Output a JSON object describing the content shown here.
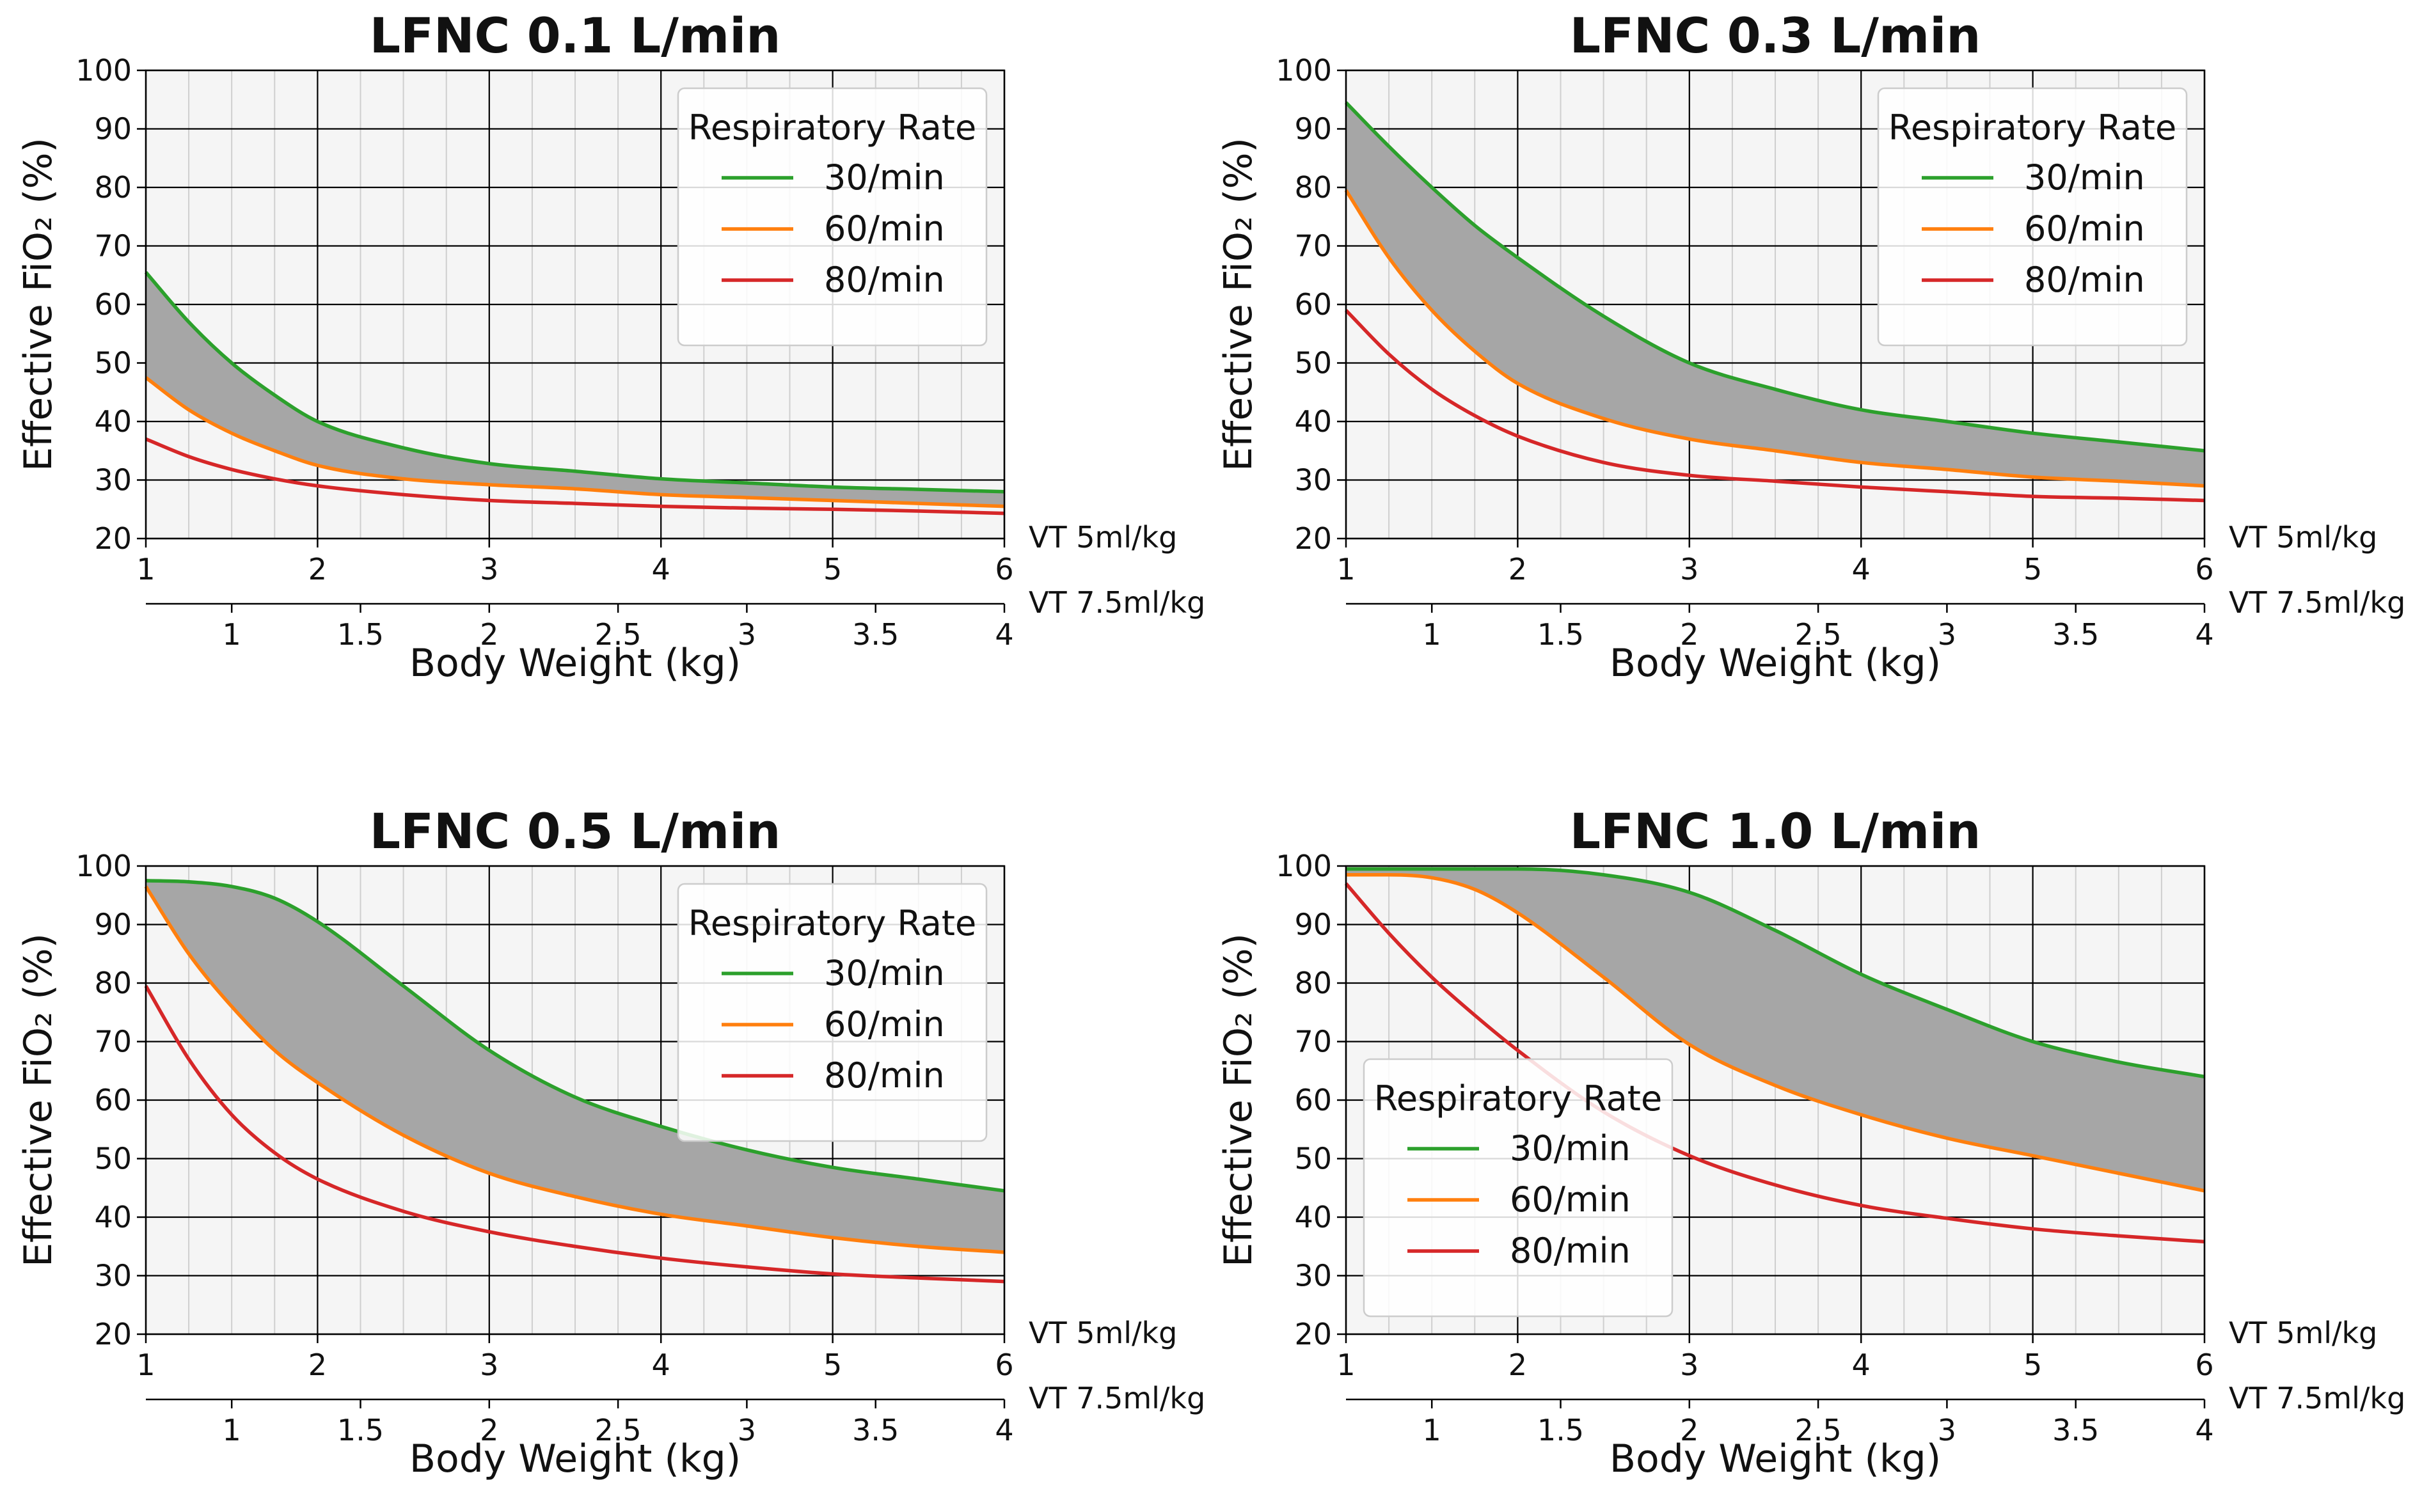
{
  "chart_data": [
    {
      "type": "line",
      "title": "LFNC 0.1 L/min",
      "xlabel": "Body Weight (kg)",
      "ylabel": "Effective FiO₂ (%)",
      "secondary_x_label": "VT 7.5ml/kg",
      "primary_x_label": "VT 5ml/kg",
      "xlim": [
        1,
        6
      ],
      "ylim": [
        20,
        100
      ],
      "x_ticks": [
        "1",
        "2",
        "3",
        "4",
        "5",
        "6"
      ],
      "secondary_x_ticks": [
        "1",
        "1.5",
        "2",
        "2.5",
        "3",
        "3.5",
        "4"
      ],
      "y_ticks": [
        "20",
        "30",
        "40",
        "50",
        "60",
        "70",
        "80",
        "90",
        "100"
      ],
      "grid": true,
      "shaded_between": [
        "30/min",
        "60/min"
      ],
      "legend": {
        "title": "Respiratory Rate",
        "position": "top-right"
      },
      "x": [
        1,
        1.25,
        1.5,
        1.75,
        2,
        2.5,
        3,
        3.5,
        4,
        4.5,
        5,
        5.5,
        6
      ],
      "series": [
        {
          "name": "30/min",
          "color": "#2ca02c",
          "values": [
            65.5,
            57,
            50,
            44.5,
            40,
            35.5,
            32.8,
            31.5,
            30.2,
            29.5,
            28.8,
            28.4,
            28
          ]
        },
        {
          "name": "60/min",
          "color": "#ff7f0e",
          "values": [
            47.5,
            42,
            38,
            35,
            32.5,
            30.2,
            29.2,
            28.5,
            27.5,
            27,
            26.5,
            26,
            25.5
          ]
        },
        {
          "name": "80/min",
          "color": "#d62728",
          "values": [
            37,
            34,
            31.8,
            30.2,
            29,
            27.5,
            26.5,
            26,
            25.5,
            25.2,
            25,
            24.7,
            24.3
          ]
        }
      ]
    },
    {
      "type": "line",
      "title": "LFNC 0.3 L/min",
      "xlabel": "Body Weight (kg)",
      "ylabel": "Effective FiO₂ (%)",
      "secondary_x_label": "VT 7.5ml/kg",
      "primary_x_label": "VT 5ml/kg",
      "xlim": [
        1,
        6
      ],
      "ylim": [
        20,
        100
      ],
      "x_ticks": [
        "1",
        "2",
        "3",
        "4",
        "5",
        "6"
      ],
      "secondary_x_ticks": [
        "1",
        "1.5",
        "2",
        "2.5",
        "3",
        "3.5",
        "4"
      ],
      "y_ticks": [
        "20",
        "30",
        "40",
        "50",
        "60",
        "70",
        "80",
        "90",
        "100"
      ],
      "grid": true,
      "shaded_between": [
        "30/min",
        "60/min"
      ],
      "legend": {
        "title": "Respiratory Rate",
        "position": "top-right"
      },
      "x": [
        1,
        1.25,
        1.5,
        1.75,
        2,
        2.5,
        3,
        3.5,
        4,
        4.5,
        5,
        5.5,
        6
      ],
      "series": [
        {
          "name": "30/min",
          "color": "#2ca02c",
          "values": [
            94.5,
            87,
            80,
            73.5,
            68,
            58,
            50,
            45.5,
            42,
            40,
            38,
            36.5,
            35
          ]
        },
        {
          "name": "60/min",
          "color": "#ff7f0e",
          "values": [
            79.5,
            68,
            59,
            52,
            46.5,
            40.5,
            37,
            35,
            33,
            31.8,
            30.5,
            29.8,
            29
          ]
        },
        {
          "name": "80/min",
          "color": "#d62728",
          "values": [
            59,
            51.5,
            45.5,
            41,
            37.5,
            33,
            30.8,
            29.8,
            28.8,
            28,
            27.2,
            26.9,
            26.5
          ]
        }
      ]
    },
    {
      "type": "line",
      "title": "LFNC 0.5 L/min",
      "xlabel": "Body Weight (kg)",
      "ylabel": "Effective FiO₂ (%)",
      "secondary_x_label": "VT 7.5ml/kg",
      "primary_x_label": "VT 5ml/kg",
      "xlim": [
        1,
        6
      ],
      "ylim": [
        20,
        100
      ],
      "x_ticks": [
        "1",
        "2",
        "3",
        "4",
        "5",
        "6"
      ],
      "secondary_x_ticks": [
        "1",
        "1.5",
        "2",
        "2.5",
        "3",
        "3.5",
        "4"
      ],
      "y_ticks": [
        "20",
        "30",
        "40",
        "50",
        "60",
        "70",
        "80",
        "90",
        "100"
      ],
      "grid": true,
      "shaded_between": [
        "30/min",
        "60/min"
      ],
      "legend": {
        "title": "Respiratory Rate",
        "position": "top-right"
      },
      "x": [
        1,
        1.25,
        1.5,
        1.75,
        2,
        2.5,
        3,
        3.5,
        4,
        4.5,
        5,
        5.5,
        6
      ],
      "series": [
        {
          "name": "30/min",
          "color": "#2ca02c",
          "values": [
            97.5,
            97.3,
            96.5,
            94.5,
            90.5,
            79.5,
            68.5,
            60.5,
            55.5,
            51.5,
            48.5,
            46.5,
            44.5
          ]
        },
        {
          "name": "60/min",
          "color": "#ff7f0e",
          "values": [
            96.5,
            85,
            76,
            68.5,
            63,
            54,
            47.5,
            43.5,
            40.5,
            38.5,
            36.5,
            35,
            34
          ]
        },
        {
          "name": "80/min",
          "color": "#d62728",
          "values": [
            79.5,
            67,
            57.5,
            51,
            46.5,
            41,
            37.5,
            35,
            33,
            31.5,
            30.3,
            29.6,
            29
          ]
        }
      ]
    },
    {
      "type": "line",
      "title": "LFNC 1.0 L/min",
      "xlabel": "Body Weight (kg)",
      "ylabel": "Effective FiO₂ (%)",
      "secondary_x_label": "VT 7.5ml/kg",
      "primary_x_label": "VT 5ml/kg",
      "xlim": [
        1,
        6
      ],
      "ylim": [
        20,
        100
      ],
      "x_ticks": [
        "1",
        "2",
        "3",
        "4",
        "5",
        "6"
      ],
      "secondary_x_ticks": [
        "1",
        "1.5",
        "2",
        "2.5",
        "3",
        "3.5",
        "4"
      ],
      "y_ticks": [
        "20",
        "30",
        "40",
        "50",
        "60",
        "70",
        "80",
        "90",
        "100"
      ],
      "grid": true,
      "shaded_between": [
        "30/min",
        "60/min"
      ],
      "legend": {
        "title": "Respiratory Rate",
        "position": "bottom-left"
      },
      "x": [
        1,
        1.25,
        1.5,
        1.75,
        2,
        2.5,
        3,
        3.5,
        4,
        4.5,
        5,
        5.5,
        6
      ],
      "series": [
        {
          "name": "30/min",
          "color": "#2ca02c",
          "values": [
            99.5,
            99.5,
            99.5,
            99.5,
            99.5,
            98.5,
            95.5,
            89,
            81.5,
            75.5,
            70,
            66.5,
            64
          ]
        },
        {
          "name": "60/min",
          "color": "#ff7f0e",
          "values": [
            98.5,
            98.5,
            98,
            96,
            92,
            81,
            69.5,
            62.5,
            57.5,
            53.5,
            50.5,
            47.5,
            44.5
          ]
        },
        {
          "name": "80/min",
          "color": "#d62728",
          "values": [
            97,
            88.5,
            81,
            74.5,
            68.5,
            58,
            50.5,
            45.5,
            42,
            39.8,
            38,
            36.8,
            35.8
          ]
        }
      ]
    }
  ]
}
